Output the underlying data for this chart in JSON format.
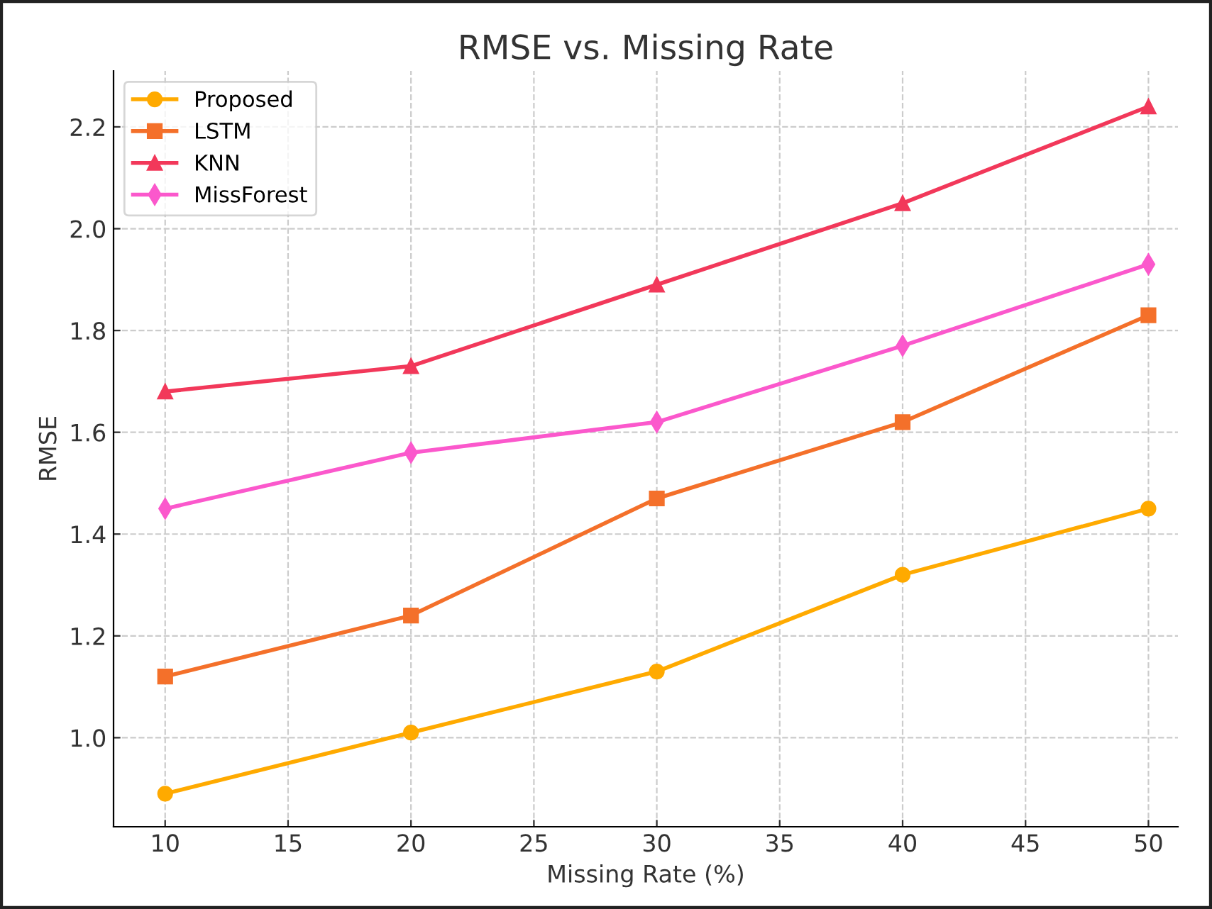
{
  "chart_data": {
    "type": "line",
    "title": "RMSE vs. Missing Rate",
    "xlabel": "Missing Rate (%)",
    "ylabel": "RMSE",
    "x": [
      10,
      20,
      30,
      40,
      50
    ],
    "series": [
      {
        "name": "Proposed",
        "color": "#ffaa00",
        "marker": "circle",
        "values": [
          0.89,
          1.01,
          1.13,
          1.32,
          1.45
        ]
      },
      {
        "name": "LSTM",
        "color": "#f4702a",
        "marker": "square",
        "values": [
          1.12,
          1.24,
          1.47,
          1.62,
          1.83
        ]
      },
      {
        "name": "KNN",
        "color": "#f2385a",
        "marker": "triangle",
        "values": [
          1.68,
          1.73,
          1.89,
          2.05,
          2.24
        ]
      },
      {
        "name": "MissForest",
        "color": "#fb58cc",
        "marker": "diamond",
        "values": [
          1.45,
          1.56,
          1.62,
          1.77,
          1.93
        ]
      }
    ],
    "xlim": [
      7.9,
      51.2
    ],
    "xticks": [
      10,
      15,
      20,
      25,
      30,
      35,
      40,
      45,
      50
    ],
    "ylim": [
      0.825,
      2.31
    ],
    "yticks": [
      {
        "value": 1.0,
        "label": "1.0"
      },
      {
        "value": 1.2,
        "label": "1.2"
      },
      {
        "value": 1.4,
        "label": "1.4"
      },
      {
        "value": 1.6,
        "label": "1.6"
      },
      {
        "value": 1.8,
        "label": "1.8"
      },
      {
        "value": 2.0,
        "label": "2.0"
      },
      {
        "value": 2.2,
        "label": "2.2"
      }
    ],
    "grid": true,
    "legend": "top left",
    "line_style": "solid"
  }
}
